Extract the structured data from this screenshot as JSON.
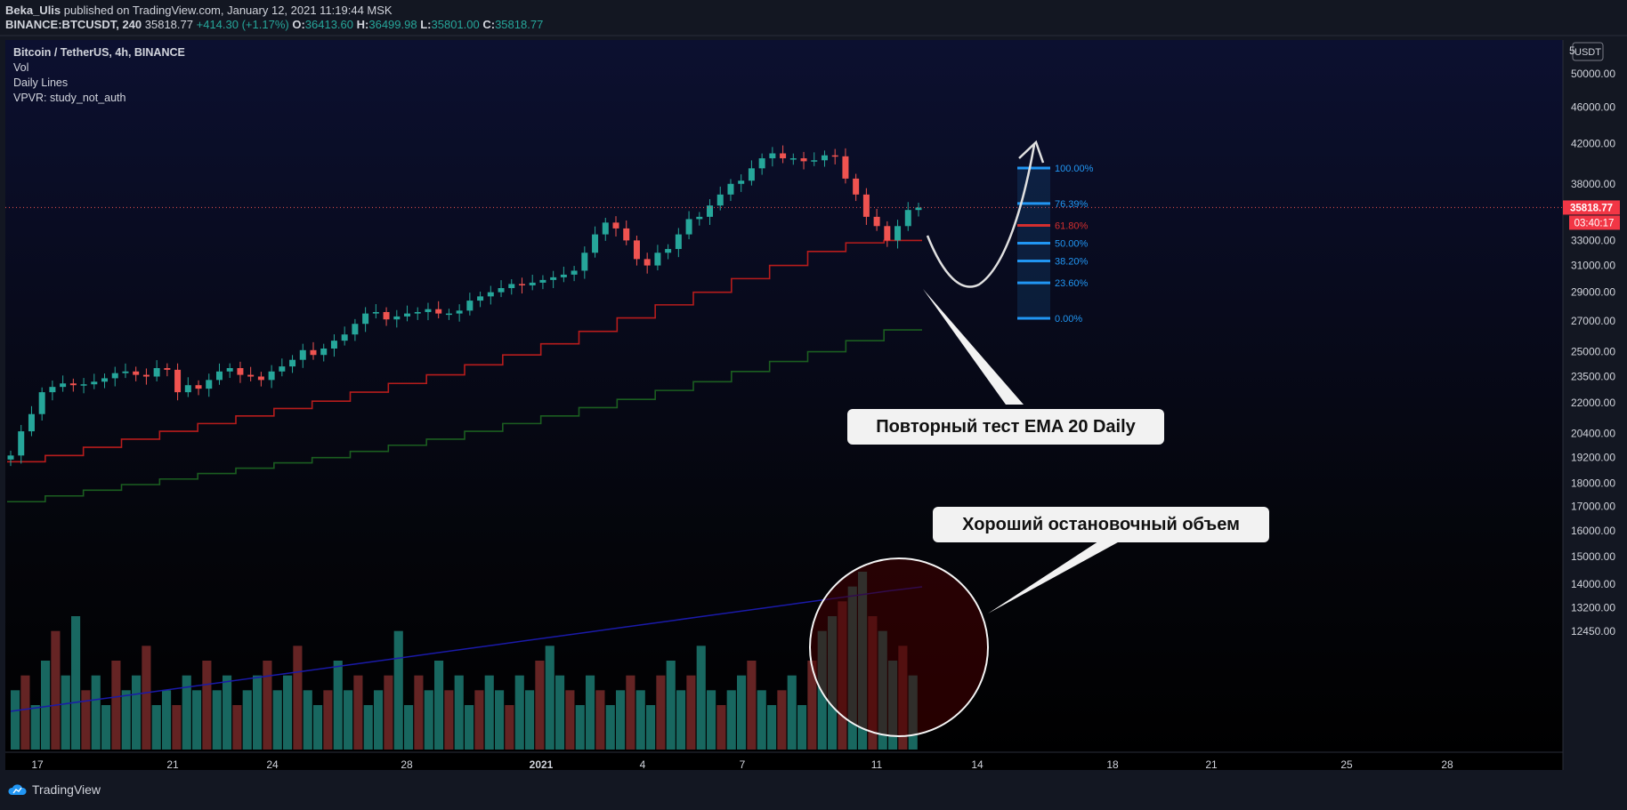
{
  "header": {
    "author": "Beka_Ulis",
    "published": "published on TradingView.com, January 12, 2021 11:19:44 MSK",
    "symbol": "BINANCE:BTCUSDT, 240",
    "last": "35818.77",
    "change": "+414.30 (+1.17%)",
    "o_label": "O:",
    "o_val": "36413.60",
    "h_label": "H:",
    "h_val": "36499.98",
    "l_label": "L:",
    "l_val": "35801.00",
    "c_label": "C:",
    "c_val": "35818.77"
  },
  "legend": {
    "title": "Bitcoin / TetherUS, 4h, BINANCE",
    "items": [
      "Vol",
      "Daily Lines",
      "VPVR: study_not_auth"
    ]
  },
  "footer": {
    "brand": "TradingView"
  },
  "annotations": {
    "ema_callout": "Повторный тест EMA 20 Daily",
    "volume_callout": "Хороший остановочный объем"
  },
  "colors": {
    "up": "#26a69a",
    "down": "#ef5350",
    "ema_red": "#b71c1c",
    "ema_green": "#1b5e20",
    "vol_ma": "#1a1aa8",
    "last_price_tag": "#f23645",
    "fib_blue": "#2196f3",
    "fib_red": "#d32f2f"
  },
  "chart_data": {
    "type": "candlestick",
    "y_scale": "log",
    "ylim": [
      12450,
      53000
    ],
    "price_ticks": [
      "12450.00",
      "13200.00",
      "14000.00",
      "15000.00",
      "16000.00",
      "17000.00",
      "18000.00",
      "19200.00",
      "20400.00",
      "22000.00",
      "23500.00",
      "25000.00",
      "27000.00",
      "29000.00",
      "31000.00",
      "33000.00",
      "38000.00",
      "42000.00",
      "46000.00",
      "50000.00"
    ],
    "top_tick_partial": "5",
    "currency": "USDT",
    "time_ticks": [
      "17",
      "21",
      "24",
      "28",
      "2021",
      "4",
      "7",
      "11",
      "14",
      "18",
      "21",
      "25",
      "28"
    ],
    "last_price": {
      "value": 35818.77,
      "label": "35818.77",
      "countdown": "03:40:17"
    },
    "close_path": [
      19300,
      20500,
      21400,
      22600,
      22900,
      23100,
      23000,
      23050,
      23200,
      23400,
      23700,
      23800,
      23600,
      23500,
      24000,
      23900,
      22600,
      23000,
      22800,
      23300,
      23800,
      24000,
      23600,
      23500,
      23300,
      23800,
      24100,
      24500,
      25100,
      24800,
      25200,
      25700,
      26100,
      26800,
      27500,
      27600,
      27100,
      27300,
      27500,
      27600,
      27800,
      27500,
      27500,
      27700,
      28400,
      28700,
      29000,
      29300,
      29600,
      29500,
      29700,
      29900,
      30100,
      30300,
      30600,
      32000,
      33500,
      34500,
      34000,
      33000,
      31500,
      31000,
      32000,
      32300,
      33500,
      34800,
      35000,
      36000,
      37000,
      38000,
      38300,
      39500,
      40500,
      41000,
      40500,
      40500,
      40200,
      40300,
      40800,
      40700,
      38500,
      37000,
      35000,
      34200,
      33000,
      34200,
      35600,
      35818.77
    ],
    "ema20_daily": [
      19000,
      19300,
      19700,
      20100,
      20500,
      20900,
      21300,
      21700,
      22100,
      22600,
      23100,
      23600,
      24200,
      24800,
      25500,
      26300,
      27200,
      28100,
      29000,
      30000,
      31000,
      32100,
      32800,
      33000
    ],
    "ema_slow_daily": [
      17200,
      17450,
      17700,
      17950,
      18200,
      18450,
      18700,
      18950,
      19200,
      19500,
      19800,
      20100,
      20500,
      20900,
      21300,
      21750,
      22200,
      22700,
      23200,
      23800,
      24400,
      25000,
      25700,
      26400
    ],
    "fib_levels": [
      {
        "label": "100.00%",
        "color": "blue"
      },
      {
        "label": "76.39%",
        "color": "blue"
      },
      {
        "label": "61.80%",
        "color": "red"
      },
      {
        "label": "50.00%",
        "color": "blue"
      },
      {
        "label": "38.20%",
        "color": "blue"
      },
      {
        "label": "23.60%",
        "color": "blue"
      },
      {
        "label": "0.00%",
        "color": "blue"
      }
    ],
    "volume": [
      4,
      5,
      3,
      6,
      8,
      5,
      9,
      4,
      5,
      3,
      6,
      4,
      5,
      7,
      3,
      4,
      3,
      5,
      4,
      6,
      4,
      5,
      3,
      4,
      5,
      6,
      4,
      5,
      7,
      4,
      3,
      4,
      6,
      4,
      5,
      3,
      4,
      5,
      8,
      3,
      5,
      4,
      6,
      4,
      5,
      3,
      4,
      5,
      4,
      3,
      5,
      4,
      6,
      7,
      5,
      4,
      3,
      5,
      4,
      3,
      4,
      5,
      4,
      3,
      5,
      6,
      4,
      5,
      7,
      4,
      3,
      4,
      5,
      6,
      4,
      3,
      4,
      5,
      3,
      6,
      8,
      9,
      10,
      11,
      12,
      9,
      8,
      6,
      7,
      5
    ]
  }
}
